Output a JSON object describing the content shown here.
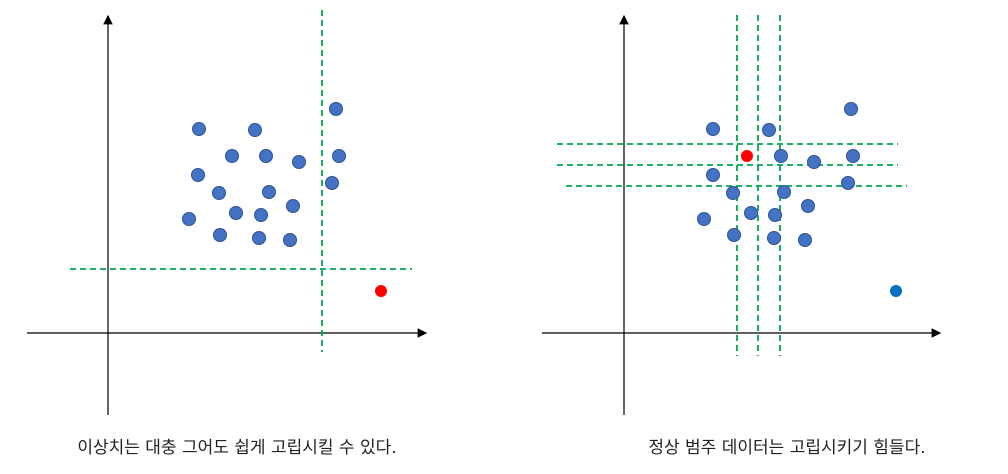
{
  "captions": {
    "left": "이상치는 대충 그어도 쉽게 고립시킬 수 있다.",
    "right": "정상 범주 데이터는 고립시키기 힘들다."
  }
}
